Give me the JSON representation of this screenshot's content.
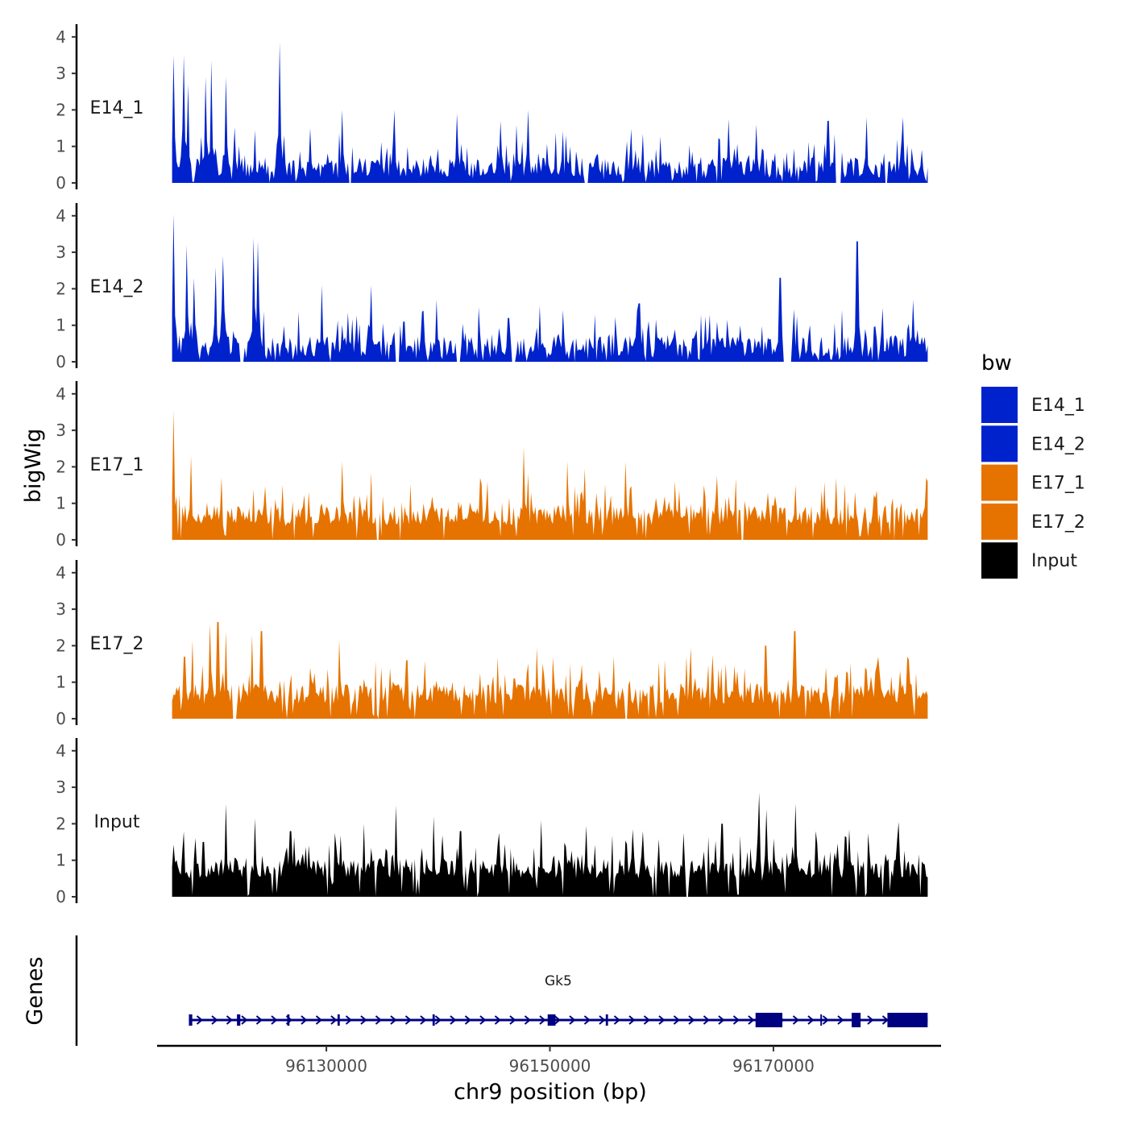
{
  "chart_data": {
    "type": "area",
    "subtype": "genome-browser-coverage-tracks",
    "x_axis": {
      "label": "chr9 position (bp)",
      "range": [
        96115000,
        96185000
      ],
      "data_range": [
        96116200,
        96183800
      ],
      "ticks": [
        {
          "value": 96130000,
          "label": "96130000"
        },
        {
          "value": 96150000,
          "label": "96150000"
        },
        {
          "value": 96170000,
          "label": "96170000"
        }
      ]
    },
    "y_axis": {
      "label": "bigWig",
      "range": [
        0,
        4.2
      ],
      "ticks": [
        "0",
        "1",
        "2",
        "3",
        "4"
      ]
    },
    "legend": {
      "title": "bw",
      "placement": "right",
      "items": [
        {
          "label": "E14_1",
          "color": "#0022cc"
        },
        {
          "label": "E14_2",
          "color": "#0022cc"
        },
        {
          "label": "E17_1",
          "color": "#e67300"
        },
        {
          "label": "E17_2",
          "color": "#e67300"
        },
        {
          "label": "Input",
          "color": "#000000"
        }
      ]
    },
    "tracks": [
      {
        "name": "E14_1",
        "color": "#0022cc",
        "peaks": [
          [
            96116300,
            3.5
          ],
          [
            96117200,
            3.5
          ],
          [
            96117600,
            2.7
          ],
          [
            96119200,
            2.9
          ],
          [
            96119700,
            3.35
          ],
          [
            96121000,
            2.9
          ],
          [
            96125800,
            3.85
          ],
          [
            96128500,
            1.5
          ],
          [
            96131400,
            2.0
          ],
          [
            96136100,
            2.0
          ],
          [
            96141700,
            1.9
          ],
          [
            96145600,
            1.7
          ],
          [
            96148000,
            2.0
          ],
          [
            96166000,
            1.75
          ],
          [
            96168500,
            1.6
          ],
          [
            96174900,
            1.7
          ],
          [
            96178300,
            1.8
          ],
          [
            96181600,
            1.8
          ]
        ],
        "gaps": [
          [
            96124800,
            96125000
          ],
          [
            96132000,
            96132300
          ],
          [
            96153000,
            96153400
          ],
          [
            96175500,
            96176000
          ],
          [
            96180000,
            96180200
          ]
        ]
      },
      {
        "name": "E14_2",
        "color": "#0022cc",
        "peaks": [
          [
            96116300,
            4.05
          ],
          [
            96117500,
            3.2
          ],
          [
            96118200,
            2.3
          ],
          [
            96120100,
            2.6
          ],
          [
            96120800,
            2.9
          ],
          [
            96123500,
            3.4
          ],
          [
            96123900,
            3.3
          ],
          [
            96129600,
            2.1
          ],
          [
            96134000,
            2.1
          ],
          [
            96139900,
            1.7
          ],
          [
            96146300,
            1.2
          ],
          [
            96158000,
            1.6
          ],
          [
            96170600,
            2.3
          ],
          [
            96177500,
            3.3
          ],
          [
            96182500,
            1.7
          ]
        ],
        "gaps": [
          [
            96122200,
            96122600
          ],
          [
            96136200,
            96136500
          ],
          [
            96141600,
            96142000
          ],
          [
            96146600,
            96147000
          ],
          [
            96170900,
            96171600
          ]
        ]
      },
      {
        "name": "E17_1",
        "color": "#e67300",
        "peaks": [
          [
            96116300,
            3.55
          ],
          [
            96117900,
            2.3
          ],
          [
            96126100,
            1.5
          ],
          [
            96131400,
            2.15
          ],
          [
            96134000,
            1.85
          ],
          [
            96143800,
            1.7
          ],
          [
            96147700,
            2.55
          ],
          [
            96151600,
            2.15
          ],
          [
            96153100,
            1.95
          ],
          [
            96156800,
            2.15
          ],
          [
            96161200,
            1.6
          ],
          [
            96165000,
            1.75
          ],
          [
            96172000,
            1.5
          ],
          [
            96175600,
            1.7
          ],
          [
            96183800,
            1.6
          ]
        ],
        "gaps": [
          [
            96134500,
            96134700
          ],
          [
            96136500,
            96136700
          ],
          [
            96167100,
            96167300
          ],
          [
            96180700,
            96180900
          ]
        ]
      },
      {
        "name": "E17_2",
        "color": "#e67300",
        "peaks": [
          [
            96117300,
            1.7
          ],
          [
            96118000,
            2.15
          ],
          [
            96119600,
            2.6
          ],
          [
            96120300,
            2.65
          ],
          [
            96121000,
            2.4
          ],
          [
            96123300,
            2.3
          ],
          [
            96124200,
            2.4
          ],
          [
            96128500,
            1.4
          ],
          [
            96131200,
            2.15
          ],
          [
            96137200,
            1.6
          ],
          [
            96145300,
            1.4
          ],
          [
            96148800,
            1.95
          ],
          [
            96155700,
            1.7
          ],
          [
            96162600,
            1.95
          ],
          [
            96164600,
            1.75
          ],
          [
            96169300,
            2.0
          ],
          [
            96171900,
            2.4
          ],
          [
            96178200,
            1.4
          ],
          [
            96182000,
            1.7
          ]
        ],
        "gaps": [
          [
            96121600,
            96122000
          ],
          [
            96137800,
            96138000
          ],
          [
            96156700,
            96156900
          ],
          [
            96175000,
            96175200
          ]
        ]
      },
      {
        "name": "Input",
        "color": "#000000",
        "peaks": [
          [
            96119000,
            1.5
          ],
          [
            96121000,
            2.55
          ],
          [
            96123600,
            2.15
          ],
          [
            96126800,
            1.8
          ],
          [
            96130800,
            1.75
          ],
          [
            96133400,
            2.0
          ],
          [
            96136200,
            2.5
          ],
          [
            96139600,
            2.2
          ],
          [
            96142000,
            1.8
          ],
          [
            96145500,
            1.75
          ],
          [
            96149200,
            2.1
          ],
          [
            96153200,
            1.95
          ],
          [
            96157400,
            1.85
          ],
          [
            96162000,
            1.75
          ],
          [
            96165400,
            2.0
          ],
          [
            96168700,
            2.85
          ],
          [
            96169400,
            2.4
          ],
          [
            96172000,
            2.55
          ],
          [
            96173800,
            1.8
          ],
          [
            96176800,
            1.85
          ],
          [
            96181200,
            2.05
          ]
        ],
        "gaps": [
          [
            96143400,
            96143600
          ],
          [
            96162200,
            96162400
          ]
        ]
      }
    ],
    "gene_track": {
      "label": "Genes",
      "genes": [
        {
          "name": "Gk5",
          "strand": "+",
          "start": 96117700,
          "end": 96183800,
          "color": "#000080",
          "exons": [
            [
              96117700,
              96118000
            ],
            [
              96122000,
              96122300
            ],
            [
              96126500,
              96126700
            ],
            [
              96131000,
              96131200
            ],
            [
              96139500,
              96139700
            ],
            [
              96149800,
              96150500
            ],
            [
              96155000,
              96155200
            ],
            [
              96168400,
              96170800
            ],
            [
              96174200,
              96174300
            ],
            [
              96177000,
              96177800
            ],
            [
              96180200,
              96183800
            ]
          ],
          "utr_blocks": [
            [
              96168400,
              96170800
            ],
            [
              96177000,
              96177800
            ],
            [
              96180200,
              96183800
            ]
          ]
        }
      ]
    }
  }
}
